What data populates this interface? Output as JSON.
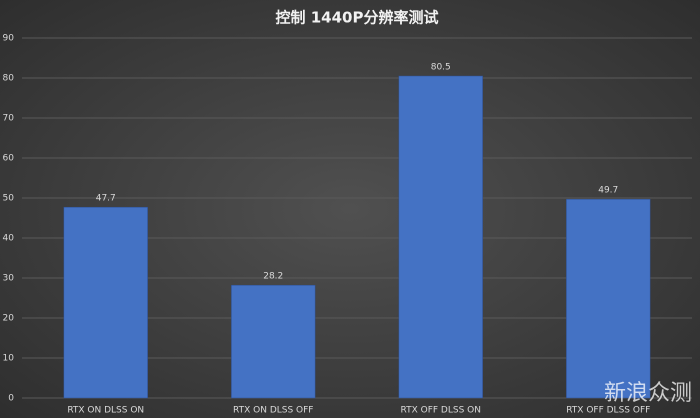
{
  "chart_data": {
    "type": "bar",
    "title": "控制 1440P分辨率测试",
    "categories": [
      "RTX ON DLSS ON",
      "RTX ON DLSS OFF",
      "RTX OFF DLSS ON",
      "RTX OFF DLSS OFF"
    ],
    "values": [
      47.7,
      28.2,
      80.5,
      49.7
    ],
    "color": "#4472c4",
    "ylim": [
      0,
      90
    ],
    "yticks": [
      0,
      10,
      20,
      30,
      40,
      50,
      60,
      70,
      80,
      90
    ],
    "grid": true,
    "watermark": "新浪众测"
  }
}
